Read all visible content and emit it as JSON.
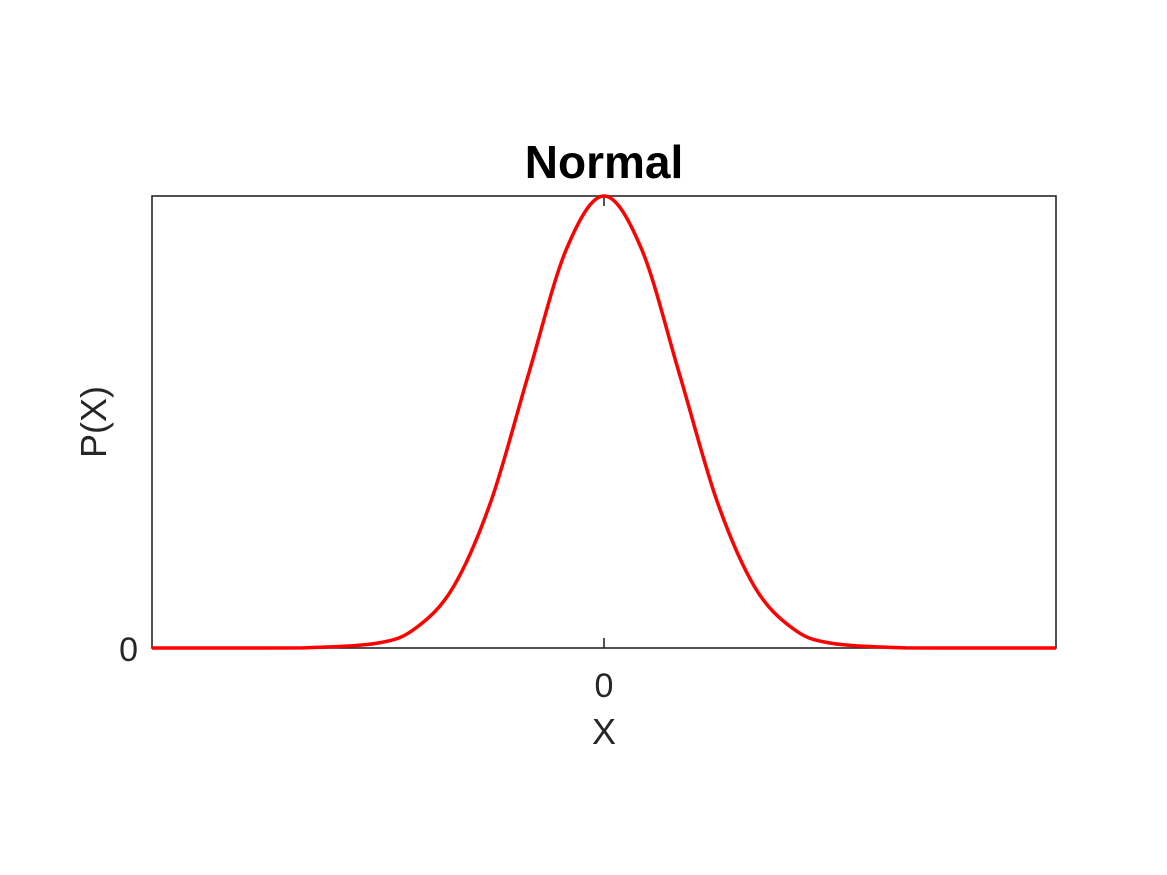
{
  "chart_data": {
    "type": "line",
    "title": "Normal",
    "xlabel": "X",
    "ylabel": "P(X)",
    "xticks": [
      "0"
    ],
    "yticks": [
      "0"
    ],
    "xlim": [
      -6,
      6
    ],
    "ylim": [
      0,
      1
    ],
    "grid": false,
    "series": [
      {
        "color": "#ff0000",
        "x": [
          -6,
          -5,
          -4,
          -3,
          -2.5,
          -2,
          -1.5,
          -1,
          -0.5,
          0,
          0.5,
          1,
          1.5,
          2,
          2.5,
          3,
          4,
          5,
          6
        ],
        "y": [
          0,
          0,
          0.0003,
          0.011,
          0.044,
          0.135,
          0.325,
          0.607,
          0.882,
          1,
          0.882,
          0.607,
          0.325,
          0.135,
          0.044,
          0.011,
          0.0003,
          0,
          0
        ]
      }
    ]
  }
}
